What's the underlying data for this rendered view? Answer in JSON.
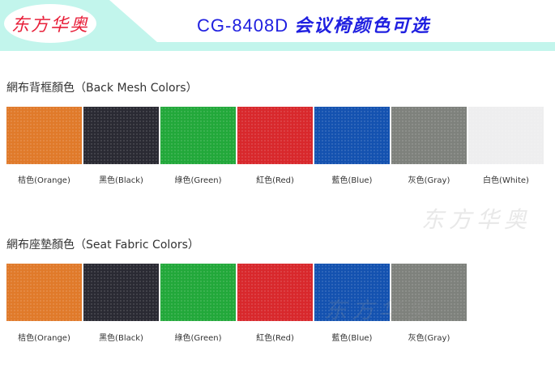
{
  "header": {
    "logo": "东方华奥",
    "model": "CG-8408D",
    "title": "会议椅颜色可选"
  },
  "back_mesh": {
    "title": "網布背框顏色（Back Mesh Colors）",
    "swatches": [
      {
        "label": "桔色(Orange)",
        "color": "#e07a2a"
      },
      {
        "label": "黑色(Black)",
        "color": "#2a2a33"
      },
      {
        "label": "綠色(Green)",
        "color": "#22a83a"
      },
      {
        "label": "紅色(Red)",
        "color": "#d8282c"
      },
      {
        "label": "藍色(Blue)",
        "color": "#1452b0"
      },
      {
        "label": "灰色(Gray)",
        "color": "#7e817c"
      },
      {
        "label": "白色(White)",
        "color": "#eeeeef"
      }
    ]
  },
  "seat_fabric": {
    "title": "網布座墊顏色（Seat Fabric Colors）",
    "swatches": [
      {
        "label": "桔色(Orange)",
        "color": "#e07a2a"
      },
      {
        "label": "黑色(Black)",
        "color": "#2a2a33"
      },
      {
        "label": "綠色(Green)",
        "color": "#22a83a"
      },
      {
        "label": "紅色(Red)",
        "color": "#d8282c"
      },
      {
        "label": "藍色(Blue)",
        "color": "#1452b0"
      },
      {
        "label": "灰色(Gray)",
        "color": "#7e817c"
      }
    ]
  },
  "watermark": "东方华奥"
}
